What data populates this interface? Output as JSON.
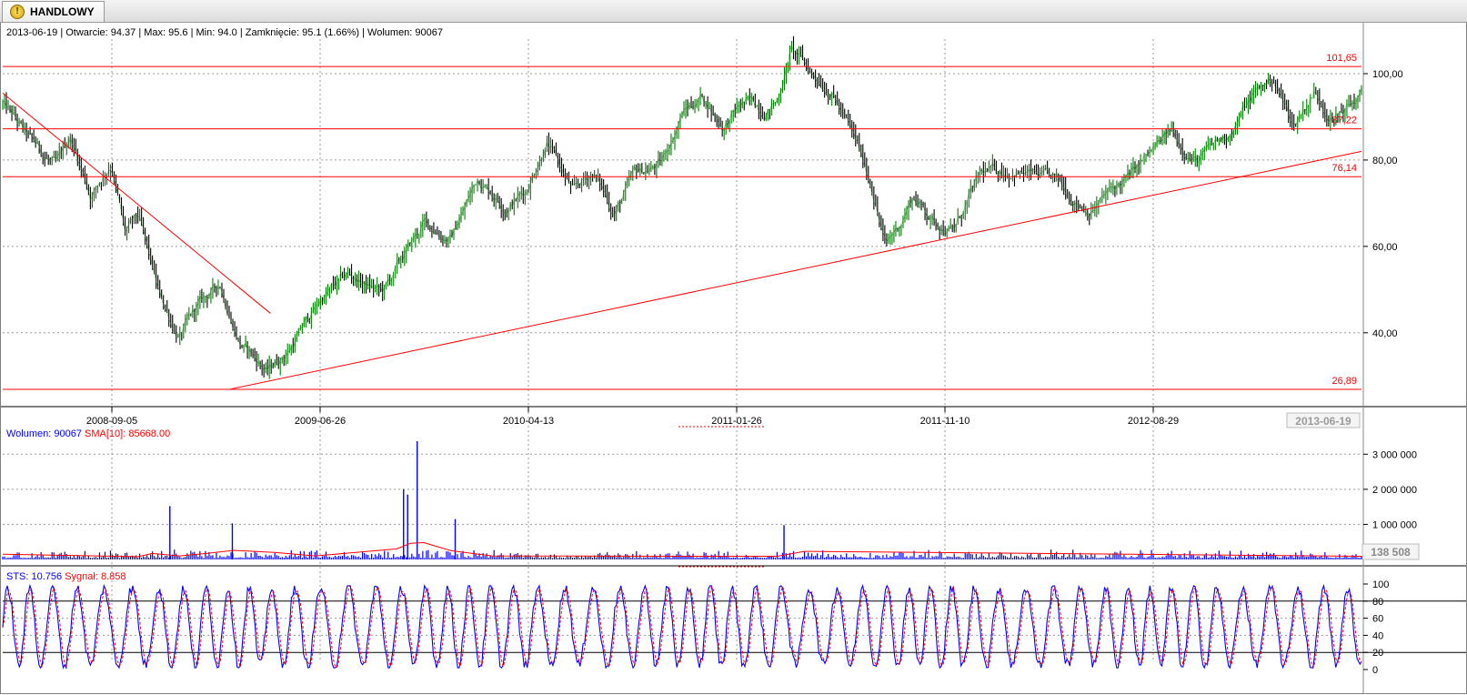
{
  "tab": {
    "label": "HANDLOWY",
    "icon": "warning-icon"
  },
  "price_panel": {
    "info": "2013-06-19 | Otwarcie: 94.37 | Max: 95.6 | Min: 94.0 | Zamknięcie: 95.1 (1.66%)  | Wolumen: 90067",
    "date_badge": "2013-06-19"
  },
  "volume_panel": {
    "legend_volume": "Wolumen: 90067",
    "legend_sma": "SMA[10]: 85668.00",
    "value_badge": "138 508"
  },
  "sts_panel": {
    "legend_sts": "STS: 10.756",
    "legend_signal": "Sygnał: 8.858"
  },
  "colors": {
    "up": "#008000",
    "down": "#000000",
    "lines": "#ff0000",
    "volume": "#0000ff",
    "sts": "#0000ff",
    "signal": "#ff0000"
  },
  "chart_data": [
    {
      "type": "line",
      "x_ticks": [
        "2008-09-05",
        "2009-06-26",
        "2010-04-13",
        "2011-01-26",
        "2011-11-10",
        "2012-08-29"
      ],
      "y_ticks": [
        "40,00",
        "60,00",
        "80,00",
        "100,00"
      ],
      "ylim": [
        25,
        108
      ],
      "horizontal_lines": [
        {
          "value": 101.65,
          "label": "101,65"
        },
        {
          "value": 87.22,
          "label": "87,22"
        },
        {
          "value": 76.14,
          "label": "76,14"
        },
        {
          "value": 26.89,
          "label": "26,89"
        }
      ],
      "trendlines": [
        {
          "from": [
            0.0,
            95.5
          ],
          "to": [
            0.197,
            44.5
          ]
        },
        {
          "from": [
            0.167,
            26.9
          ],
          "to": [
            1.0,
            82.0
          ]
        }
      ],
      "series": [
        {
          "x": [
            0.0,
            0.02,
            0.04,
            0.05,
            0.065,
            0.08,
            0.09,
            0.1,
            0.115,
            0.13,
            0.145,
            0.16,
            0.175,
            0.195,
            0.21,
            0.235,
            0.255,
            0.28,
            0.31,
            0.33,
            0.35,
            0.37,
            0.385,
            0.4,
            0.42,
            0.435,
            0.45,
            0.465,
            0.485,
            0.5,
            0.515,
            0.53,
            0.545,
            0.56,
            0.57,
            0.58,
            0.595,
            0.61,
            0.625,
            0.64,
            0.65,
            0.66,
            0.67,
            0.685,
            0.7,
            0.72,
            0.745,
            0.77,
            0.8,
            0.83,
            0.86,
            0.88,
            0.9,
            0.92,
            0.935,
            0.95,
            0.965,
            0.98,
            1.0
          ],
          "y": [
            93,
            84,
            78,
            85,
            72,
            80,
            63,
            66,
            48,
            39,
            46,
            51,
            38,
            31,
            36,
            48,
            53,
            49,
            65,
            62,
            76,
            70,
            73,
            85,
            72,
            77,
            68,
            76,
            79,
            91,
            95,
            88,
            93,
            92,
            94,
            106,
            100,
            97,
            86,
            74,
            60,
            65,
            72,
            66,
            64,
            76,
            78,
            75,
            69,
            76,
            86,
            80,
            85,
            95,
            99,
            88,
            96,
            90,
            95
          ]
        }
      ]
    },
    {
      "type": "bar",
      "title": "Wolumen",
      "y_ticks": [
        "1 000 000",
        "2 000 000",
        "3 000 000"
      ],
      "ylim": [
        0,
        3500000
      ],
      "spikes": [
        {
          "x": 0.123,
          "value": 1520000
        },
        {
          "x": 0.169,
          "value": 1030000
        },
        {
          "x": 0.295,
          "value": 2000000
        },
        {
          "x": 0.298,
          "value": 1850000
        },
        {
          "x": 0.305,
          "value": 3370000
        },
        {
          "x": 0.333,
          "value": 1150000
        },
        {
          "x": 0.575,
          "value": 980000
        }
      ],
      "sma_series": [
        {
          "name": "SMA[10]",
          "x": [
            0.0,
            0.1,
            0.11,
            0.13,
            0.15,
            0.17,
            0.2,
            0.23,
            0.29,
            0.3,
            0.31,
            0.33,
            0.36,
            0.5,
            0.57,
            0.59,
            1.0
          ],
          "y": [
            150000,
            80000,
            170000,
            100000,
            170000,
            260000,
            200000,
            100000,
            300000,
            460000,
            480000,
            250000,
            100000,
            90000,
            90000,
            230000,
            90000
          ]
        }
      ]
    },
    {
      "type": "line",
      "title": "STS",
      "y_ticks": [
        "0",
        "20",
        "40",
        "60",
        "80",
        "100"
      ],
      "ylim": [
        0,
        100
      ],
      "reference_lines": [
        20,
        80
      ],
      "series": [
        {
          "name": "STS",
          "cycles": 56
        },
        {
          "name": "Sygnał",
          "cycles": 56
        }
      ]
    }
  ]
}
